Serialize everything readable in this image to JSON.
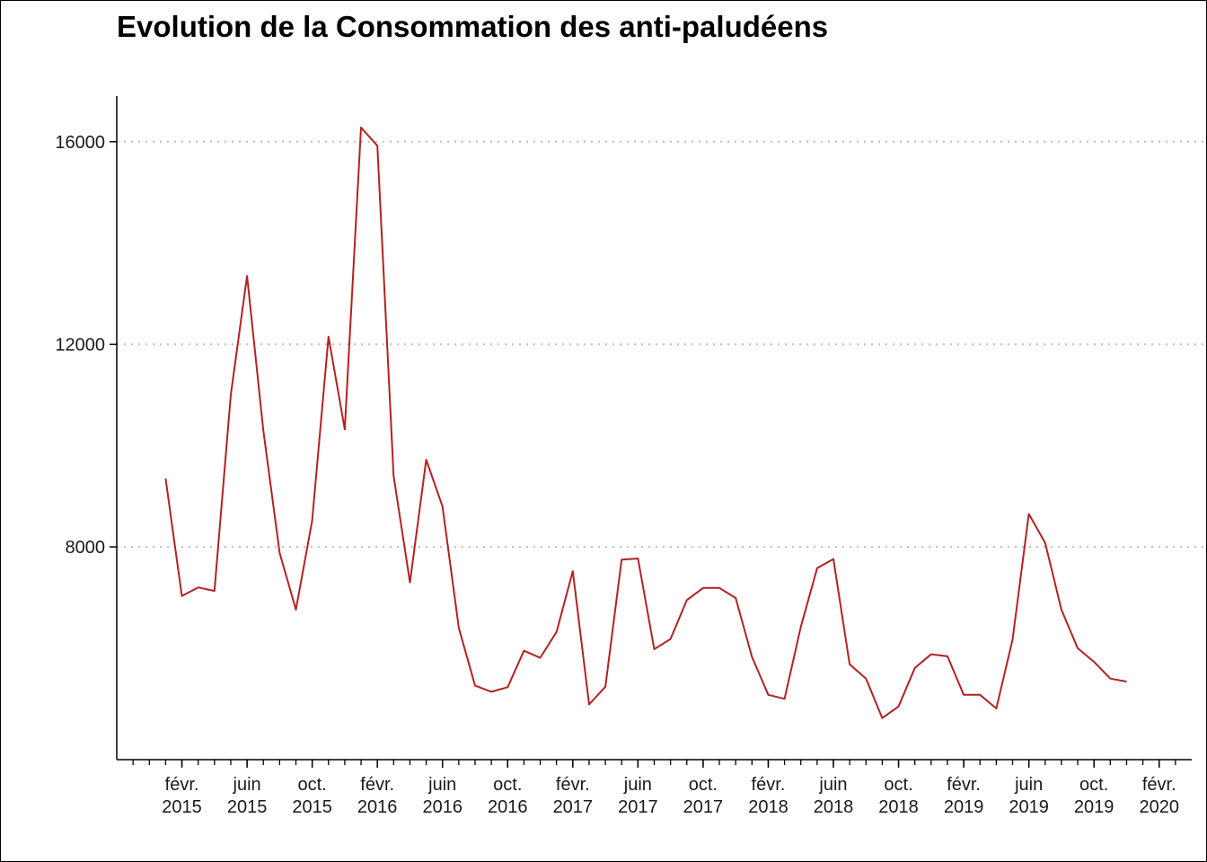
{
  "chart_data": {
    "type": "line",
    "title": "Evolution de la Consommation des anti-paludéens",
    "xlabel": "",
    "ylabel": "",
    "line_color": "#B22222",
    "grid": "horizontal dotted (major y)",
    "ylim": [
      3800,
      16900
    ],
    "xlim": [
      "2014-10",
      "2020-04"
    ],
    "y_ticks": [
      8000,
      12000,
      16000
    ],
    "y_tick_labels": [
      "8000",
      "12000",
      "16000"
    ],
    "x_ticks": [
      {
        "date": "2015-02",
        "month": "févr.",
        "year": "2015"
      },
      {
        "date": "2015-06",
        "month": "juin",
        "year": "2015"
      },
      {
        "date": "2015-10",
        "month": "oct.",
        "year": "2015"
      },
      {
        "date": "2016-02",
        "month": "févr.",
        "year": "2016"
      },
      {
        "date": "2016-06",
        "month": "juin",
        "year": "2016"
      },
      {
        "date": "2016-10",
        "month": "oct.",
        "year": "2016"
      },
      {
        "date": "2017-02",
        "month": "févr.",
        "year": "2017"
      },
      {
        "date": "2017-06",
        "month": "juin",
        "year": "2017"
      },
      {
        "date": "2017-10",
        "month": "oct.",
        "year": "2017"
      },
      {
        "date": "2018-02",
        "month": "févr.",
        "year": "2018"
      },
      {
        "date": "2018-06",
        "month": "juin",
        "year": "2018"
      },
      {
        "date": "2018-10",
        "month": "oct.",
        "year": "2018"
      },
      {
        "date": "2019-02",
        "month": "févr.",
        "year": "2019"
      },
      {
        "date": "2019-06",
        "month": "juin",
        "year": "2019"
      },
      {
        "date": "2019-10",
        "month": "oct.",
        "year": "2019"
      },
      {
        "date": "2020-02",
        "month": "févr.",
        "year": "2020"
      }
    ],
    "series": [
      {
        "x": [
          "2015-01",
          "2015-02",
          "2015-03",
          "2015-04",
          "2015-05",
          "2015-06",
          "2015-07",
          "2015-08",
          "2015-09",
          "2015-10",
          "2015-11",
          "2015-12",
          "2016-01",
          "2016-02",
          "2016-03",
          "2016-04",
          "2016-05",
          "2016-06",
          "2016-07",
          "2016-08",
          "2016-09",
          "2016-10",
          "2016-11",
          "2016-12",
          "2017-01",
          "2017-02",
          "2017-03",
          "2017-04",
          "2017-05",
          "2017-06",
          "2017-07",
          "2017-08",
          "2017-09",
          "2017-10",
          "2017-11",
          "2017-12",
          "2018-01",
          "2018-02",
          "2018-03",
          "2018-04",
          "2018-05",
          "2018-06",
          "2018-07",
          "2018-08",
          "2018-09",
          "2018-10",
          "2018-11",
          "2018-12",
          "2019-01",
          "2019-02",
          "2019-03",
          "2019-04",
          "2019-05",
          "2019-06",
          "2019-07",
          "2019-08",
          "2019-09",
          "2019-10",
          "2019-11",
          "2019-12"
        ],
        "values": [
          9350,
          7030,
          7200,
          7130,
          11000,
          13350,
          10300,
          7880,
          6760,
          8520,
          12150,
          10320,
          16280,
          15920,
          9400,
          7300,
          9720,
          8800,
          6400,
          5260,
          5140,
          5230,
          5950,
          5810,
          6320,
          7520,
          4890,
          5240,
          7750,
          7770,
          5980,
          6180,
          6950,
          7190,
          7190,
          6990,
          5830,
          5080,
          5000,
          6420,
          7580,
          7760,
          5680,
          5400,
          4620,
          4850,
          5610,
          5880,
          5840,
          5080,
          5080,
          4810,
          6170,
          8650,
          8080,
          6760,
          6000,
          5730,
          5400,
          5340
        ]
      }
    ]
  }
}
